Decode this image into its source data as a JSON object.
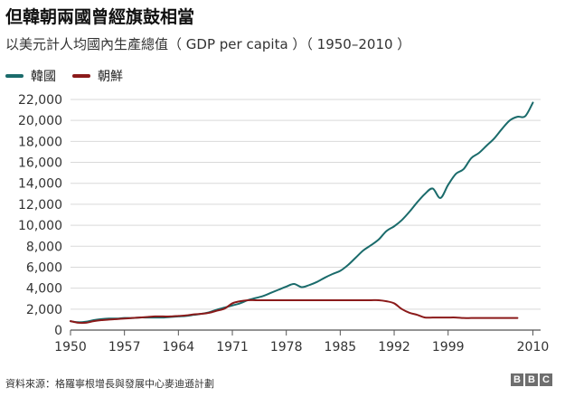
{
  "chart_data": {
    "type": "line",
    "title": "但韓朝兩國曾經旗鼓相當",
    "subtitle": "以美元計人均國內生產總值（ GDP per capita ）（ 1950–2010 ）",
    "xlabel": "",
    "ylabel": "",
    "xlim": [
      1950,
      2011
    ],
    "ylim": [
      0,
      22000
    ],
    "x_ticks": [
      "1950",
      "1957",
      "1964",
      "1971",
      "1978",
      "1985",
      "1992",
      "1999",
      "2010"
    ],
    "y_ticks": [
      "0",
      "2,000",
      "4,000",
      "6,000",
      "8,000",
      "10,000",
      "12,000",
      "14,000",
      "16,000",
      "18,000",
      "20,000",
      "22,000"
    ],
    "grid": "horizontal",
    "legend_position": "top-left",
    "series": [
      {
        "name": "韓國",
        "color": "#1a6b6b",
        "x": [
          1950,
          1951,
          1952,
          1953,
          1954,
          1955,
          1956,
          1957,
          1958,
          1959,
          1960,
          1961,
          1962,
          1963,
          1964,
          1965,
          1966,
          1967,
          1968,
          1969,
          1970,
          1971,
          1972,
          1973,
          1974,
          1975,
          1976,
          1977,
          1978,
          1979,
          1980,
          1981,
          1982,
          1983,
          1984,
          1985,
          1986,
          1987,
          1988,
          1989,
          1990,
          1991,
          1992,
          1993,
          1994,
          1995,
          1996,
          1997,
          1998,
          1999,
          2000,
          2001,
          2002,
          2003,
          2004,
          2005,
          2006,
          2007,
          2008,
          2009,
          2010
        ],
        "values": [
          850,
          750,
          800,
          950,
          1050,
          1100,
          1100,
          1150,
          1150,
          1200,
          1200,
          1200,
          1200,
          1250,
          1300,
          1350,
          1450,
          1550,
          1700,
          1950,
          2150,
          2350,
          2550,
          2850,
          3050,
          3250,
          3550,
          3850,
          4150,
          4400,
          4100,
          4300,
          4600,
          5000,
          5350,
          5650,
          6200,
          6900,
          7600,
          8100,
          8650,
          9450,
          9900,
          10500,
          11300,
          12200,
          13000,
          13500,
          12600,
          13850,
          14900,
          15350,
          16400,
          16900,
          17600,
          18300,
          19200,
          20000,
          20350,
          20400,
          21700
        ]
      },
      {
        "name": "朝鮮",
        "color": "#8b1a1a",
        "x": [
          1950,
          1951,
          1952,
          1953,
          1954,
          1955,
          1956,
          1957,
          1958,
          1959,
          1960,
          1961,
          1962,
          1963,
          1964,
          1965,
          1966,
          1967,
          1968,
          1969,
          1970,
          1971,
          1972,
          1973,
          1974,
          1975,
          1976,
          1977,
          1978,
          1979,
          1980,
          1981,
          1982,
          1983,
          1984,
          1985,
          1986,
          1987,
          1988,
          1989,
          1990,
          1991,
          1992,
          1993,
          1994,
          1995,
          1996,
          1997,
          1998,
          1999,
          2000,
          2001,
          2002,
          2003,
          2004,
          2005,
          2006,
          2007,
          2008
        ],
        "values": [
          850,
          700,
          700,
          850,
          950,
          1000,
          1050,
          1100,
          1150,
          1200,
          1250,
          1300,
          1300,
          1300,
          1350,
          1400,
          1500,
          1550,
          1650,
          1850,
          2050,
          2550,
          2750,
          2850,
          2850,
          2850,
          2850,
          2850,
          2850,
          2850,
          2850,
          2850,
          2850,
          2850,
          2850,
          2850,
          2850,
          2850,
          2850,
          2850,
          2850,
          2750,
          2550,
          2000,
          1650,
          1450,
          1200,
          1200,
          1200,
          1200,
          1200,
          1150,
          1150,
          1150,
          1150,
          1150,
          1150,
          1150,
          1150
        ]
      }
    ]
  },
  "source_text": "資料來源：格羅寧根增長與發展中心麥迪遜計劃",
  "brand": {
    "logo_letters": [
      "B",
      "B",
      "C"
    ]
  }
}
